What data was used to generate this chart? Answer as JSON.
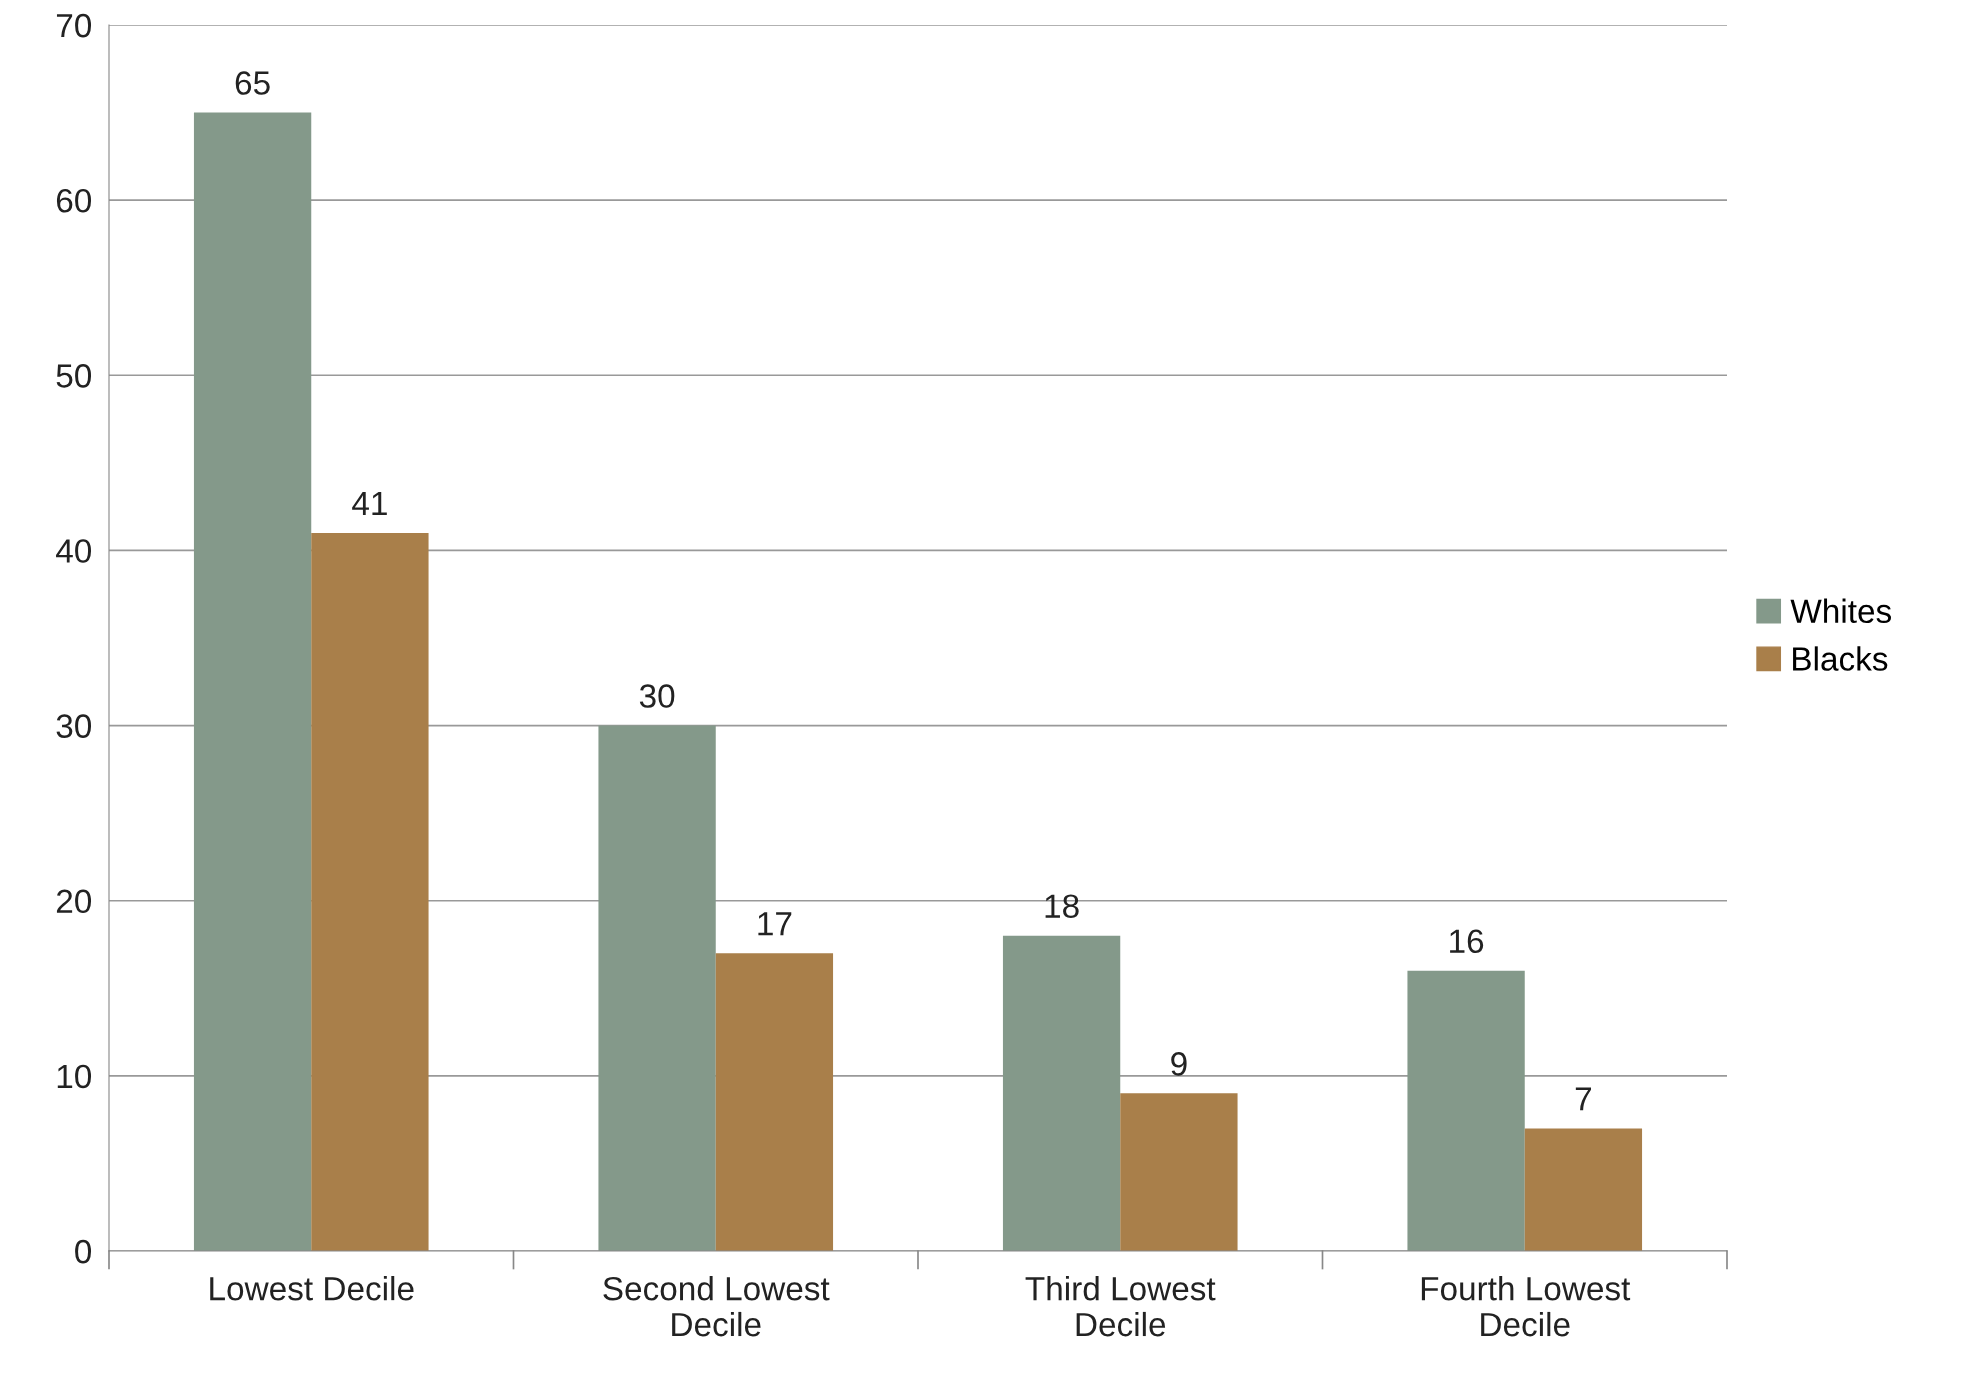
{
  "chart_data": {
    "type": "bar",
    "categories": [
      "Lowest Decile",
      "Second Lowest\nDecile",
      "Third Lowest\nDecile",
      "Fourth Lowest\nDecile"
    ],
    "series": [
      {
        "name": "Whites",
        "color": "#84998a",
        "values": [
          65,
          30,
          18,
          16
        ]
      },
      {
        "name": "Blacks",
        "color": "#a97f4a",
        "values": [
          41,
          17,
          9,
          7
        ]
      }
    ],
    "ylim": [
      0,
      70
    ],
    "yticks": [
      0,
      10,
      20,
      30,
      40,
      50,
      60,
      70
    ],
    "grid": "y",
    "legend": "right",
    "data_labels": true
  }
}
